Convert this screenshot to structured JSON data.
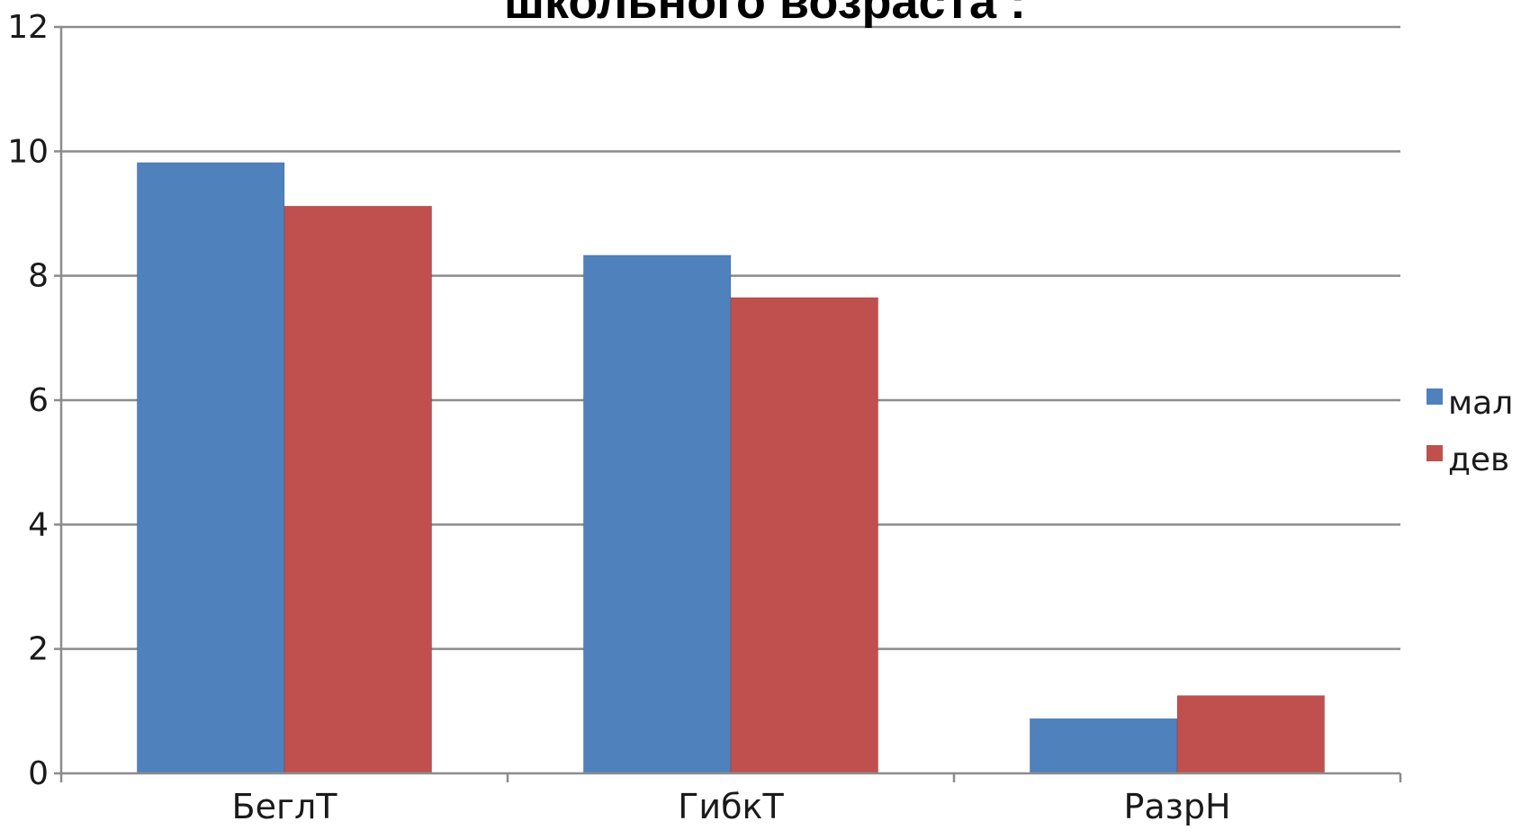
{
  "chart_data": {
    "type": "bar",
    "title": "школьного возраста :",
    "categories": [
      "БеглТ",
      "ГибкТ",
      "РазрН"
    ],
    "series": [
      {
        "name": "мал",
        "color": "#4f81bd",
        "values": [
          9.82,
          8.33,
          0.88
        ]
      },
      {
        "name": "дев",
        "color": "#c0504d",
        "values": [
          9.12,
          7.65,
          1.25
        ]
      }
    ],
    "ylim": [
      0,
      12
    ],
    "yticks": [
      "0",
      "2",
      "4",
      "6",
      "8",
      "10",
      "12"
    ],
    "xlabel": "",
    "ylabel": "",
    "grid": true,
    "legend": "right"
  }
}
